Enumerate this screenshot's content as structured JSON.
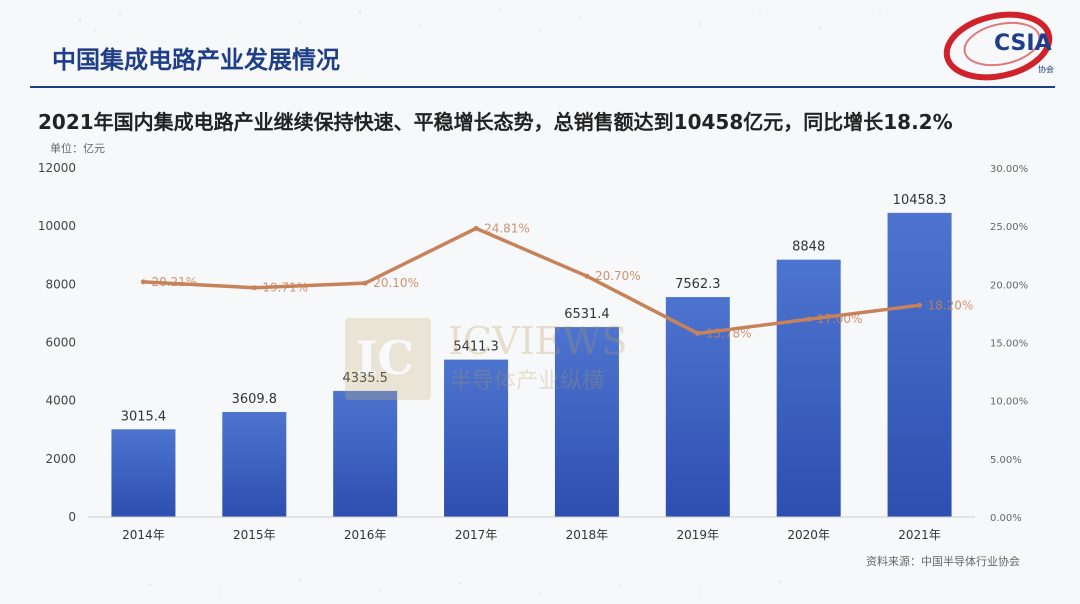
{
  "header": {
    "title": "中国集成电路产业发展情况"
  },
  "logo": {
    "text": "CSIA",
    "subtext": "协会"
  },
  "subtitle": "2021年国内集成电路产业继续保持快速、平稳增长态势，总销售额达到10458亿元，同比增长18.2%",
  "unit_label": "单位：亿元",
  "source": "资料来源：中国半导体行业协会",
  "watermark": {
    "mark": "IC",
    "text": "ICVIEWS",
    "subtext": "半导体产业纵横"
  },
  "colors": {
    "bar_top": "#4d74cf",
    "bar_bottom": "#2d4fb0",
    "line": "#c8825a",
    "title": "#1f3e88"
  },
  "chart_data": {
    "type": "bar",
    "categories": [
      "2014年",
      "2015年",
      "2016年",
      "2017年",
      "2018年",
      "2019年",
      "2020年",
      "2021年"
    ],
    "series": [
      {
        "type": "bar",
        "values": [
          3015.4,
          3609.8,
          4335.5,
          5411.3,
          6531.4,
          7562.3,
          8848,
          10458.3
        ],
        "labels": [
          "3015.4",
          "3609.8",
          "4335.5",
          "5411.3",
          "6531.4",
          "7562.3",
          "8848",
          "10458.3"
        ]
      },
      {
        "type": "line",
        "values": [
          20.21,
          19.71,
          20.1,
          24.81,
          20.7,
          15.78,
          17.0,
          18.2
        ],
        "labels": [
          "20.21%",
          "19.71%",
          "20.10%",
          "24.81%",
          "20.70%",
          "15.78%",
          "17.00%",
          "18.20%"
        ]
      }
    ],
    "ylim": [
      0,
      12000
    ],
    "yticks": [
      "0",
      "2000",
      "4000",
      "6000",
      "8000",
      "10000",
      "12000"
    ],
    "y2lim": [
      0,
      30
    ],
    "y2ticks": [
      "0.00%",
      "5.00%",
      "10.00%",
      "15.00%",
      "20.00%",
      "25.00%",
      "30.00%"
    ],
    "grid": false
  }
}
